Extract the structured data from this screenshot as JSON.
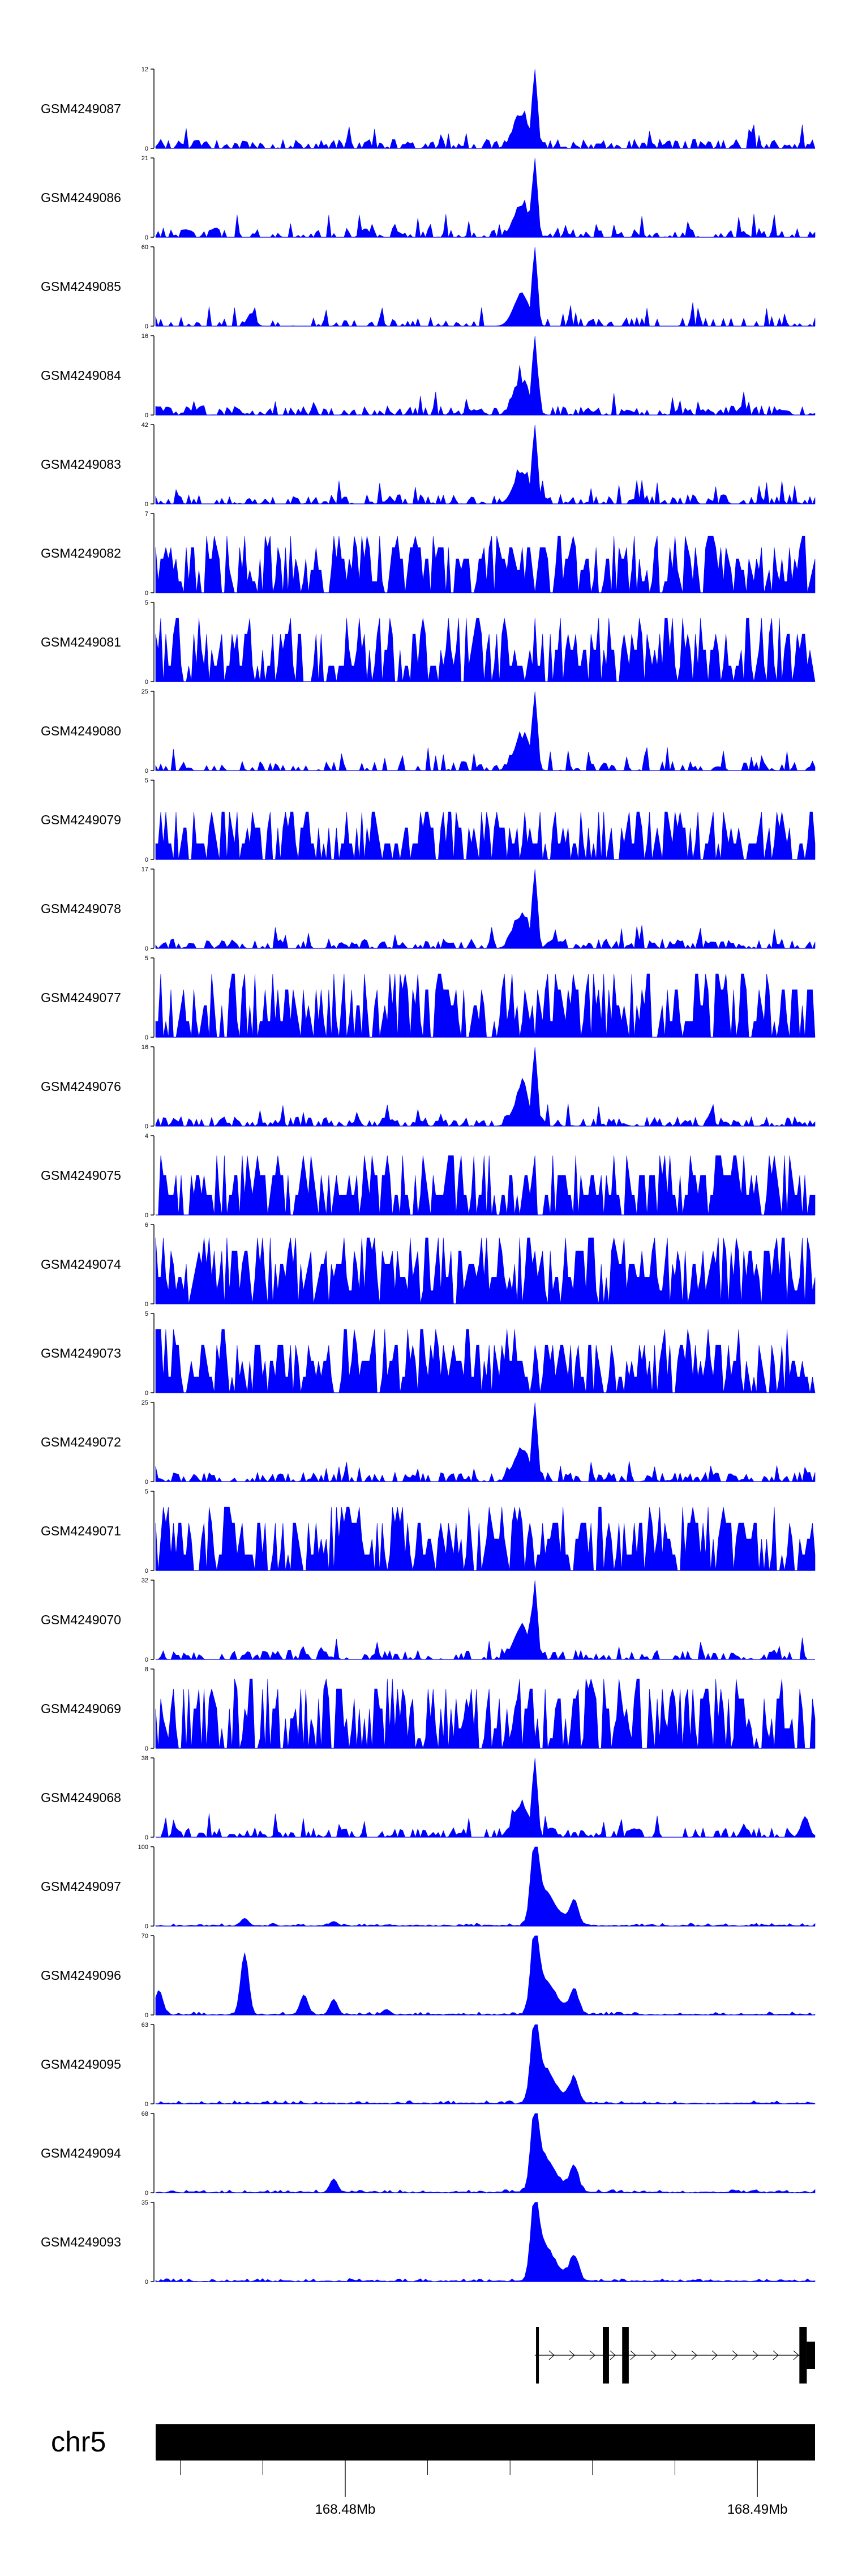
{
  "chart_data": {
    "type": "area",
    "colors": {
      "signal": "#0000ff",
      "axis": "#000000",
      "ideogram": "#000000"
    },
    "x_axis": {
      "chromosome": "chr5",
      "tick_labels": [
        "168.48Mb",
        "168.49Mb"
      ],
      "tick_values_mb": [
        168.48,
        168.49
      ],
      "range_mb": [
        168.4754,
        168.4914
      ],
      "minor_tick_step_mb": 0.002
    },
    "gene_model": {
      "strand": "+",
      "range_mb": [
        168.4846,
        168.4914
      ],
      "exons_mb": [
        [
          168.48463,
          168.48468
        ],
        [
          168.48625,
          168.4864
        ],
        [
          168.48672,
          168.48688
        ],
        [
          168.49102,
          168.4912
        ],
        [
          168.4912,
          168.4914
        ]
      ]
    },
    "tracks": [
      {
        "name": "GSM4249087",
        "ymax": 12,
        "style": "sparse",
        "density": 0.65,
        "peak": 12,
        "broad": false,
        "bumps": [],
        "seed": 1
      },
      {
        "name": "GSM4249086",
        "ymax": 21,
        "style": "sparse",
        "density": 0.55,
        "peak": 21,
        "broad": false,
        "bumps": [],
        "seed": 2
      },
      {
        "name": "GSM4249085",
        "ymax": 60,
        "style": "sparse",
        "density": 0.35,
        "peak": 60,
        "broad": false,
        "bumps": [
          [
            0.145,
            10
          ]
        ],
        "seed": 3
      },
      {
        "name": "GSM4249084",
        "ymax": 16,
        "style": "sparse",
        "density": 0.7,
        "peak": 16,
        "broad": false,
        "bumps": [],
        "seed": 4
      },
      {
        "name": "GSM4249083",
        "ymax": 42,
        "style": "sparse",
        "density": 0.55,
        "peak": 42,
        "broad": false,
        "bumps": [],
        "seed": 5
      },
      {
        "name": "GSM4249082",
        "ymax": 7,
        "style": "dense",
        "density": 0.9,
        "peak": 5,
        "broad": false,
        "bumps": [],
        "seed": 6
      },
      {
        "name": "GSM4249081",
        "ymax": 5,
        "style": "dense",
        "density": 0.9,
        "peak": 4,
        "broad": false,
        "bumps": [],
        "seed": 7
      },
      {
        "name": "GSM4249080",
        "ymax": 25,
        "style": "sparse",
        "density": 0.5,
        "peak": 25,
        "broad": false,
        "bumps": [],
        "seed": 8
      },
      {
        "name": "GSM4249079",
        "ymax": 5,
        "style": "dense",
        "density": 0.85,
        "peak": 3,
        "broad": false,
        "bumps": [],
        "seed": 9
      },
      {
        "name": "GSM4249078",
        "ymax": 17,
        "style": "sparse",
        "density": 0.65,
        "peak": 17,
        "broad": false,
        "bumps": [],
        "seed": 10
      },
      {
        "name": "GSM4249077",
        "ymax": 5,
        "style": "dense",
        "density": 0.9,
        "peak": 4,
        "broad": false,
        "bumps": [],
        "seed": 11
      },
      {
        "name": "GSM4249076",
        "ymax": 16,
        "style": "sparse",
        "density": 0.65,
        "peak": 16,
        "broad": false,
        "bumps": [],
        "seed": 12
      },
      {
        "name": "GSM4249075",
        "ymax": 4,
        "style": "dense",
        "density": 0.95,
        "peak": 3,
        "broad": false,
        "bumps": [],
        "seed": 13
      },
      {
        "name": "GSM4249074",
        "ymax": 6,
        "style": "dense",
        "density": 0.95,
        "peak": 5,
        "broad": false,
        "bumps": [],
        "seed": 14
      },
      {
        "name": "GSM4249073",
        "ymax": 5,
        "style": "dense",
        "density": 0.95,
        "peak": 4,
        "broad": false,
        "bumps": [],
        "seed": 15
      },
      {
        "name": "GSM4249072",
        "ymax": 25,
        "style": "sparse",
        "density": 0.6,
        "peak": 25,
        "broad": false,
        "bumps": [],
        "seed": 16
      },
      {
        "name": "GSM4249071",
        "ymax": 5,
        "style": "dense",
        "density": 0.9,
        "peak": 4,
        "broad": false,
        "bumps": [],
        "seed": 17
      },
      {
        "name": "GSM4249070",
        "ymax": 32,
        "style": "sparse",
        "density": 0.55,
        "peak": 32,
        "broad": false,
        "bumps": [],
        "seed": 18
      },
      {
        "name": "GSM4249069",
        "ymax": 8,
        "style": "dense",
        "density": 0.8,
        "peak": 7,
        "broad": false,
        "bumps": [],
        "seed": 19
      },
      {
        "name": "GSM4249068",
        "ymax": 38,
        "style": "sparse",
        "density": 0.55,
        "peak": 38,
        "broad": false,
        "bumps": [
          [
            0.985,
            10
          ]
        ],
        "seed": 20
      },
      {
        "name": "GSM4249097",
        "ymax": 100,
        "style": "smooth",
        "density": 0.3,
        "peak": 100,
        "broad": true,
        "bumps": [
          [
            0.135,
            10
          ],
          [
            0.27,
            6
          ]
        ],
        "seed": 21
      },
      {
        "name": "GSM4249096",
        "ymax": 70,
        "style": "smooth",
        "density": 0.3,
        "peak": 70,
        "broad": true,
        "bumps": [
          [
            0.005,
            22
          ],
          [
            0.135,
            55
          ],
          [
            0.225,
            18
          ],
          [
            0.27,
            14
          ],
          [
            0.35,
            5
          ]
        ],
        "seed": 22
      },
      {
        "name": "GSM4249095",
        "ymax": 63,
        "style": "smooth",
        "density": 0.35,
        "peak": 63,
        "broad": true,
        "bumps": [],
        "seed": 23
      },
      {
        "name": "GSM4249094",
        "ymax": 68,
        "style": "smooth",
        "density": 0.4,
        "peak": 68,
        "broad": true,
        "bumps": [
          [
            0.27,
            12
          ]
        ],
        "seed": 24
      },
      {
        "name": "GSM4249093",
        "ymax": 35,
        "style": "smooth",
        "density": 0.5,
        "peak": 35,
        "broad": true,
        "bumps": [],
        "seed": 25
      }
    ]
  }
}
